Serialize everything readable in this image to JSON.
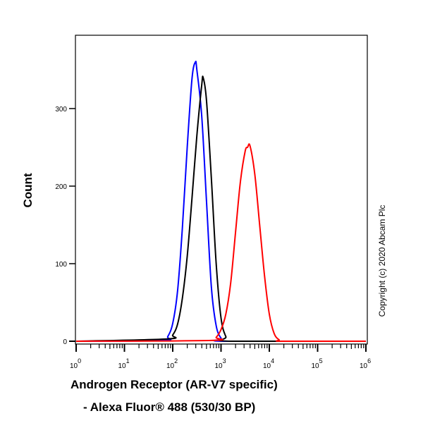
{
  "chart_data": {
    "type": "line",
    "title": "",
    "xlabel_line1": "Androgen Receptor (AR-V7 specific)",
    "xlabel_line2": "- Alexa Fluor® 488 (530/30 BP)",
    "ylabel": "Count",
    "xscale": "log",
    "xlim": [
      1,
      1000000
    ],
    "ylim": [
      0,
      395
    ],
    "x_ticks": [
      {
        "base": "10",
        "exp": "0"
      },
      {
        "base": "10",
        "exp": "1"
      },
      {
        "base": "10",
        "exp": "2"
      },
      {
        "base": "10",
        "exp": "3"
      },
      {
        "base": "10",
        "exp": "4"
      },
      {
        "base": "10",
        "exp": "5"
      },
      {
        "base": "10",
        "exp": "6"
      }
    ],
    "y_ticks": [
      "0",
      "100",
      "200",
      "300"
    ],
    "grid": false,
    "legend": "none",
    "annotation": "Copyright (c) 2020 Abcam Plc",
    "series": [
      {
        "color": "#0000ff",
        "x": [
          1,
          63,
          79,
          100,
          126,
          158,
          200,
          251,
          295,
          316,
          398,
          501,
          631,
          794,
          1000,
          1259,
          1000000
        ],
        "y": [
          0,
          1,
          6,
          23,
          65,
          145,
          251,
          339,
          360,
          350,
          291,
          180,
          70,
          20,
          4,
          0,
          0
        ]
      },
      {
        "color": "#000000",
        "x": [
          1,
          79,
          100,
          126,
          158,
          200,
          251,
          316,
          398,
          427,
          501,
          631,
          794,
          1000,
          1259,
          1585,
          1000000
        ],
        "y": [
          0,
          3,
          8,
          22,
          55,
          110,
          185,
          265,
          330,
          340,
          310,
          210,
          100,
          30,
          6,
          0,
          0
        ]
      },
      {
        "color": "#ff0000",
        "x": [
          1,
          631,
          794,
          1000,
          1259,
          1585,
          1995,
          2512,
          3162,
          3548,
          3981,
          5012,
          6310,
          7943,
          10000,
          12589,
          15849,
          19953,
          1000000
        ],
        "y": [
          0,
          1,
          5,
          15,
          35,
          75,
          140,
          205,
          245,
          250,
          252,
          215,
          150,
          85,
          35,
          10,
          2,
          0,
          0
        ]
      }
    ]
  }
}
